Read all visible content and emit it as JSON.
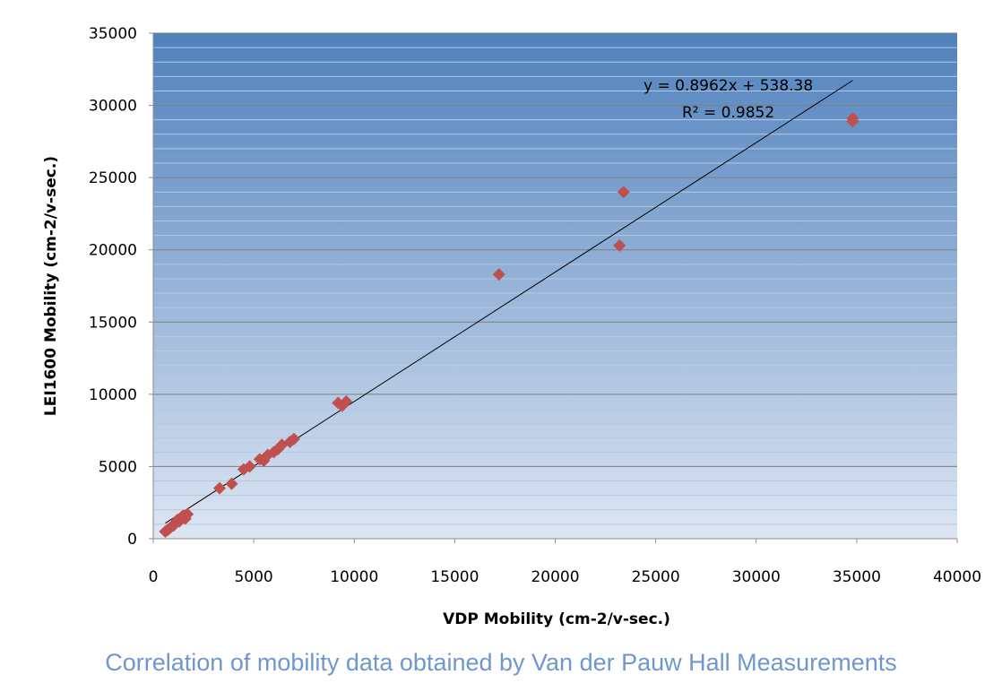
{
  "caption": "Correlation of mobility data obtained by Van der Pauw Hall Measurements",
  "colors": {
    "marker": "#c0504d",
    "plot_top": "#4f81bd",
    "plot_bottom": "#dde6f3",
    "trendline": "#000000"
  },
  "chart_data": {
    "type": "scatter",
    "title": "",
    "xlabel": "VDP Mobility (cm-2/v-sec.)",
    "ylabel": "LEI1600 Mobility (cm-2/v-sec.)",
    "xlim": [
      0,
      40000
    ],
    "ylim": [
      0,
      35000
    ],
    "xticks": [
      0,
      5000,
      10000,
      15000,
      20000,
      25000,
      30000,
      35000,
      40000
    ],
    "yticks": [
      0,
      5000,
      10000,
      15000,
      20000,
      25000,
      30000,
      35000
    ],
    "grid": "horizontal",
    "series": [
      {
        "x": [
          600,
          700,
          800,
          1000,
          1100,
          1200,
          1300,
          1400,
          1500,
          1600,
          1700,
          3300,
          3900,
          4500,
          4800,
          5300,
          5500,
          5700,
          6000,
          6200,
          6400,
          6800,
          7000,
          9200,
          9400,
          9600,
          17200,
          23200,
          23400,
          34800,
          34800
        ],
        "y": [
          500,
          600,
          700,
          900,
          1100,
          1300,
          1200,
          1500,
          1600,
          1400,
          1700,
          3500,
          3800,
          4800,
          5000,
          5500,
          5400,
          5800,
          6000,
          6200,
          6500,
          6700,
          6900,
          9400,
          9200,
          9500,
          18300,
          20300,
          24000,
          29100,
          28900
        ]
      }
    ],
    "trendline": {
      "slope": 0.8962,
      "intercept": 538.38,
      "x_range": [
        600,
        34800
      ],
      "equation": "y = 0.8962x + 538.38",
      "r2_label": "R² = 0.9852"
    }
  }
}
